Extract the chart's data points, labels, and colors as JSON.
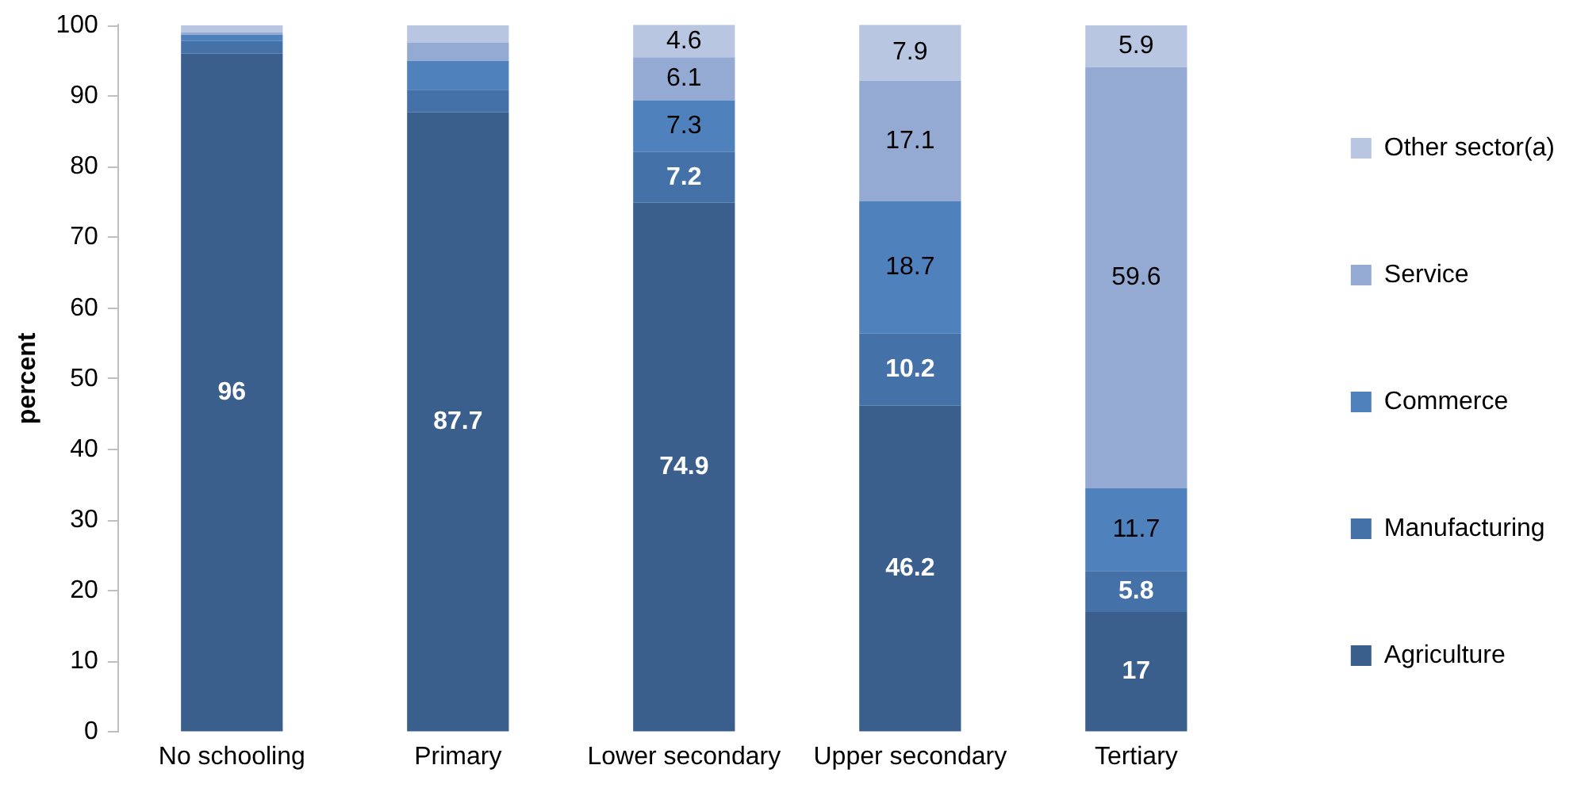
{
  "chart_data": {
    "type": "bar",
    "stacked": true,
    "categories": [
      "No schooling",
      "Primary",
      "Lower secondary",
      "Upper secondary",
      "Tertiary"
    ],
    "series": [
      {
        "name": "Agriculture",
        "color": "#3a5f8c",
        "values": [
          96,
          87.7,
          74.9,
          46.2,
          17
        ],
        "value_labels": [
          "96",
          "87.7",
          "74.9",
          "46.2",
          "17"
        ]
      },
      {
        "name": "Manufacturing",
        "color": "#4471a7",
        "values": [
          1.8,
          3.2,
          7.2,
          10.2,
          5.8
        ],
        "value_labels": [
          null,
          null,
          "7.2",
          "10.2",
          "5.8"
        ]
      },
      {
        "name": "Commerce",
        "color": "#4f81bd",
        "values": [
          0.9,
          4.1,
          7.3,
          18.7,
          11.7
        ],
        "value_labels": [
          null,
          null,
          "7.3",
          "18.7",
          "11.7"
        ]
      },
      {
        "name": "Service",
        "color": "#95aad3",
        "values": [
          0.3,
          2.6,
          6.1,
          17.1,
          59.6
        ],
        "value_labels": [
          null,
          null,
          "6.1",
          "17.1",
          "59.6"
        ]
      },
      {
        "name": "Other sector(a)",
        "color": "#b9c6e2",
        "values": [
          1.0,
          2.4,
          4.6,
          7.9,
          5.9
        ],
        "value_labels": [
          null,
          null,
          "4.6",
          "7.9",
          "5.9"
        ]
      }
    ],
    "ylabel": "percent",
    "ylim": [
      0,
      100.1
    ],
    "yticks": [
      0,
      10,
      20,
      30,
      40,
      50,
      60,
      70,
      80,
      90,
      100
    ],
    "grid": false,
    "legend": "right"
  }
}
